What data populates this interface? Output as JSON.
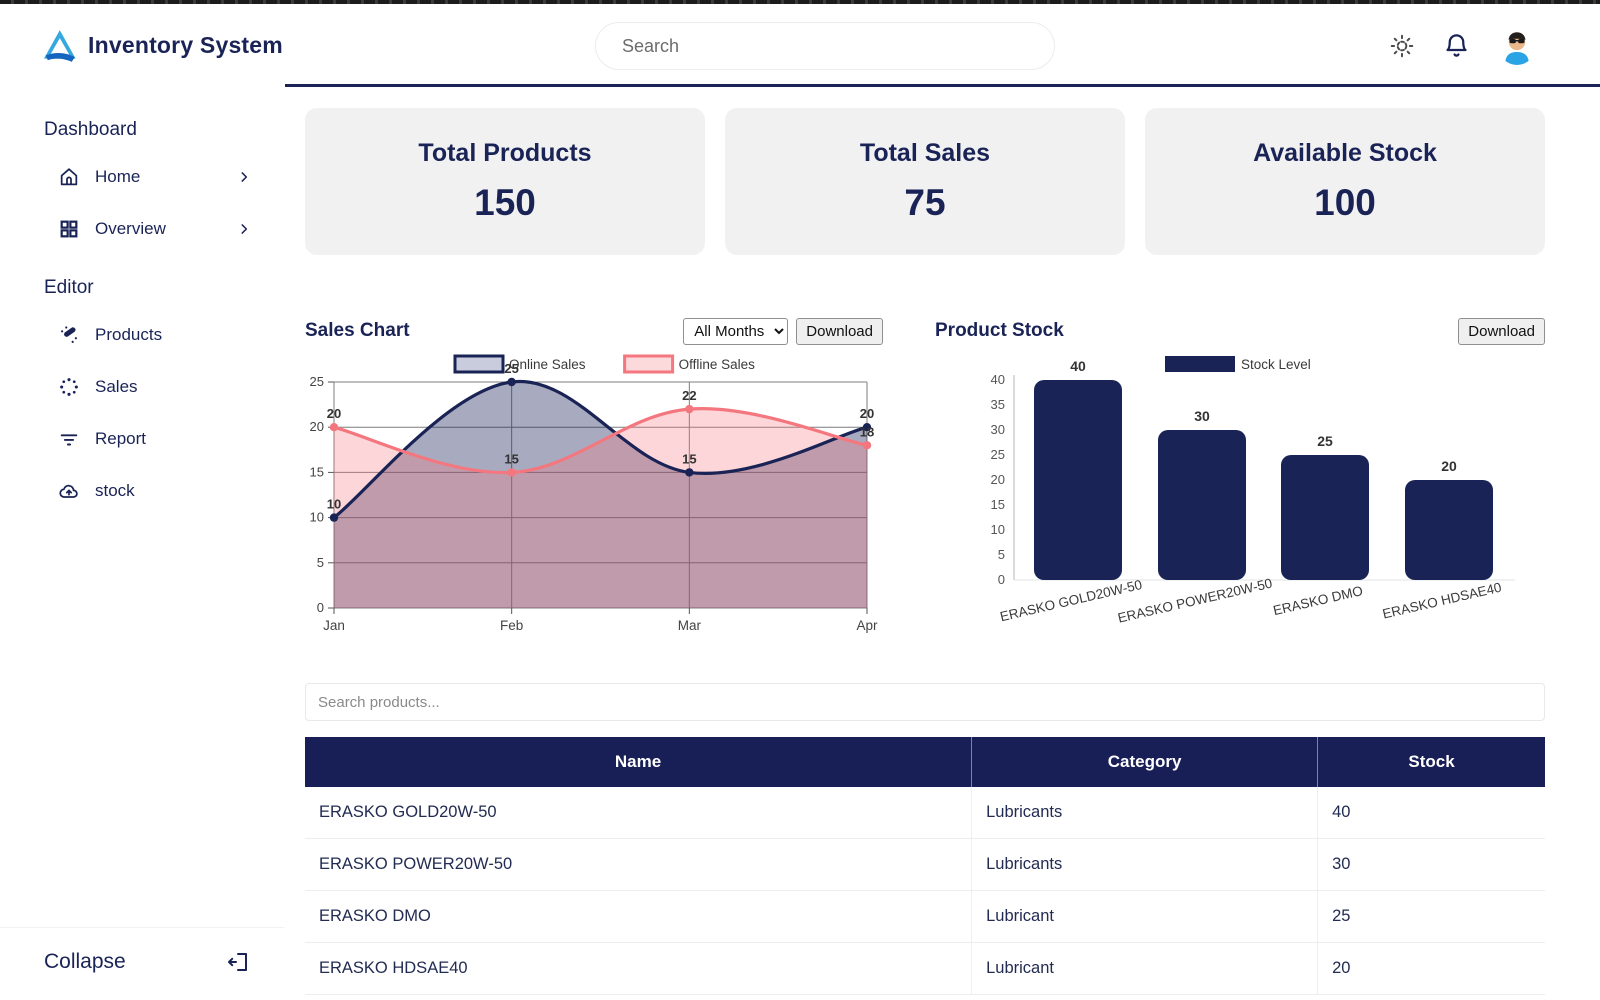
{
  "header": {
    "brand": "Inventory System",
    "search_placeholder": "Search",
    "icons": [
      "sun-icon",
      "bell-icon",
      "user-avatar"
    ]
  },
  "sidebar": {
    "sections": [
      {
        "label": "Dashboard",
        "items": [
          {
            "label": "Home",
            "icon": "home-icon",
            "chevron": true
          },
          {
            "label": "Overview",
            "icon": "grid-icon",
            "chevron": true
          }
        ]
      },
      {
        "label": "Editor",
        "items": [
          {
            "label": "Products",
            "icon": "wand-icon",
            "chevron": false
          },
          {
            "label": "Sales",
            "icon": "spinner-icon",
            "chevron": false
          },
          {
            "label": "Report",
            "icon": "filter-icon",
            "chevron": false
          },
          {
            "label": "stock",
            "icon": "cloud-upload-icon",
            "chevron": false
          }
        ]
      }
    ],
    "collapse_label": "Collapse",
    "collapse_icon": "logout-icon"
  },
  "stats": [
    {
      "label": "Total Products",
      "value": "150"
    },
    {
      "label": "Total Sales",
      "value": "75"
    },
    {
      "label": "Available Stock",
      "value": "100"
    }
  ],
  "sales_chart": {
    "title": "Sales Chart",
    "filter_value": "All Months",
    "download_label": "Download"
  },
  "product_stock": {
    "title": "Product Stock",
    "download_label": "Download"
  },
  "chart_data": [
    {
      "type": "line",
      "title": "Sales Chart",
      "x": [
        "Jan",
        "Feb",
        "Mar",
        "Apr"
      ],
      "series": [
        {
          "name": "Online Sales",
          "values": [
            10,
            25,
            15,
            20
          ],
          "color": "#1a2356",
          "fill": "rgba(26,35,86,0.38)",
          "legend_fill": "#c9ccdd"
        },
        {
          "name": "Offline Sales",
          "values": [
            20,
            15,
            22,
            18
          ],
          "color": "#f4777f",
          "fill": "rgba(244,119,127,0.30)",
          "legend_fill": "#fcd9da"
        }
      ],
      "ylim": [
        0,
        25
      ],
      "yticks": [
        0,
        5,
        10,
        15,
        20,
        25
      ],
      "grid": true,
      "legend_position": "top",
      "data_labels": true
    },
    {
      "type": "bar",
      "title": "Product Stock",
      "categories": [
        "ERASKO GOLD20W-50",
        "ERASKO POWER20W-50",
        "ERASKO DMO",
        "ERASKO HDSAE40"
      ],
      "values": [
        40,
        30,
        25,
        20
      ],
      "series_name": "Stock Level",
      "color": "#1a2356",
      "ylim": [
        0,
        40
      ],
      "yticks": [
        0,
        5,
        10,
        15,
        20,
        25,
        30,
        35,
        40
      ],
      "grid": false,
      "legend_position": "top",
      "data_labels": true
    }
  ],
  "products_table": {
    "search_placeholder": "Search products...",
    "columns": [
      "Name",
      "Category",
      "Stock"
    ],
    "rows": [
      [
        "ERASKO GOLD20W-50",
        "Lubricants",
        "40"
      ],
      [
        "ERASKO POWER20W-50",
        "Lubricants",
        "30"
      ],
      [
        "ERASKO DMO",
        "Lubricant",
        "25"
      ],
      [
        "ERASKO HDSAE40",
        "Lubricant",
        "20"
      ]
    ]
  },
  "colors": {
    "navy": "#1a2356",
    "table_header": "#181e56",
    "pink": "#f4777f",
    "logo_blue": "#35a8e0",
    "logo_dark_blue": "#1565c0",
    "card_bg": "#f1f1f2"
  }
}
